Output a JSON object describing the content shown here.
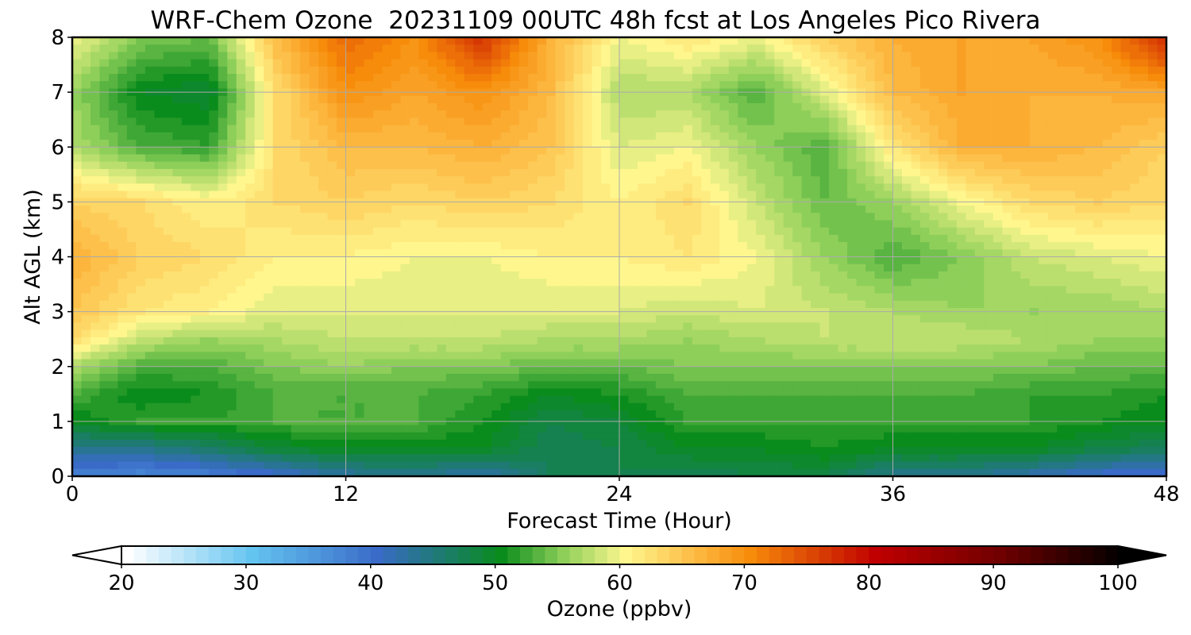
{
  "chart_data": {
    "type": "heatmap",
    "title": "WRF-Chem Ozone  20231109 00UTC 48h fcst at Los Angeles Pico Rivera",
    "xlabel": "Forecast Time (Hour)",
    "ylabel": "Alt AGL (km)",
    "xlim": [
      0,
      48
    ],
    "ylim": [
      0,
      8
    ],
    "xticks": [
      "0",
      "12",
      "24",
      "36",
      "48"
    ],
    "yticks": [
      "0",
      "1",
      "2",
      "3",
      "4",
      "5",
      "6",
      "7",
      "8"
    ],
    "grid": true,
    "x": [
      0,
      3,
      6,
      9,
      12,
      15,
      18,
      21,
      24,
      27,
      30,
      33,
      36,
      39,
      42,
      45,
      48
    ],
    "y": [
      0,
      0.5,
      1,
      1.5,
      2,
      2.5,
      3,
      4,
      5,
      6,
      7,
      8
    ],
    "z": [
      [
        38,
        37,
        38,
        40,
        43,
        44,
        42,
        47,
        48,
        47,
        48,
        48,
        44,
        44,
        42,
        40,
        39
      ],
      [
        44,
        44,
        46,
        49,
        50,
        50,
        50,
        47,
        48,
        50,
        50,
        51,
        50,
        50,
        50,
        48,
        47
      ],
      [
        50,
        52,
        52,
        53,
        53,
        53,
        51,
        48,
        49,
        52,
        52,
        52,
        52,
        52,
        52,
        51,
        50
      ],
      [
        53,
        50,
        51,
        53,
        53,
        53,
        52,
        50,
        51,
        53,
        53,
        53,
        53,
        53,
        52,
        52,
        51
      ],
      [
        57,
        53,
        53,
        55,
        56,
        55,
        55,
        54,
        54,
        55,
        55,
        55,
        55,
        55,
        55,
        54,
        54
      ],
      [
        63,
        58,
        56,
        57,
        58,
        58,
        58,
        57,
        57,
        56,
        57,
        58,
        58,
        58,
        57,
        56,
        56
      ],
      [
        65,
        62,
        61,
        59,
        59,
        59,
        59,
        59,
        59,
        58,
        59,
        58,
        57,
        56,
        56,
        56,
        57
      ],
      [
        67,
        64,
        63,
        61,
        61,
        60,
        60,
        61,
        61,
        62,
        60,
        56,
        53,
        55,
        58,
        59,
        60
      ],
      [
        64,
        63,
        61,
        63,
        64,
        63,
        64,
        63,
        61,
        63,
        58,
        54,
        56,
        60,
        63,
        64,
        63
      ],
      [
        57,
        53,
        52,
        63,
        66,
        66,
        67,
        65,
        59,
        60,
        56,
        53,
        62,
        67,
        67,
        66,
        64
      ],
      [
        56,
        50,
        49,
        63,
        70,
        68,
        70,
        66,
        57,
        57,
        53,
        59,
        66,
        68,
        67,
        67,
        68
      ],
      [
        60,
        55,
        54,
        66,
        73,
        70,
        77,
        67,
        60,
        62,
        60,
        64,
        67,
        68,
        68,
        70,
        78
      ]
    ],
    "colorbar": {
      "label": "Ozone  (ppbv)",
      "min": 20,
      "max": 100,
      "ticks": [
        "20",
        "30",
        "40",
        "50",
        "60",
        "70",
        "80",
        "90",
        "100"
      ],
      "extend": "both"
    },
    "colors": {
      "c20": "#ffffff",
      "c30": "#64c4f0",
      "c40": "#3a6bc8",
      "c45": "#1e7a73",
      "c50": "#0a8c1c",
      "c55": "#8ecf5a",
      "c60": "#fff78e",
      "c65": "#fdc04a",
      "c70": "#f78b0a",
      "c80": "#c00000",
      "c90": "#700000",
      "c100": "#000000"
    }
  }
}
